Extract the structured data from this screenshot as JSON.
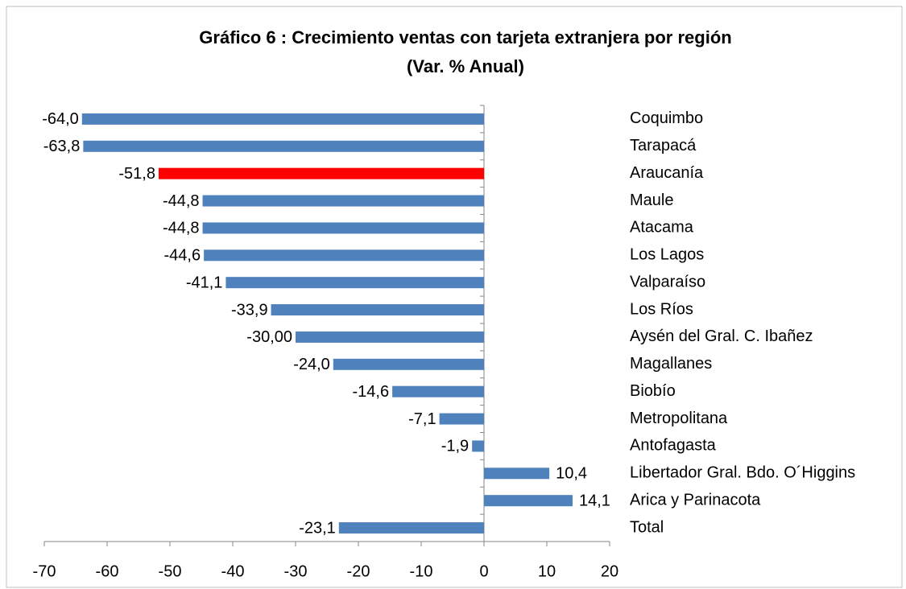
{
  "chart_data": {
    "type": "hbar",
    "title": "Gráfico 6 : Crecimiento ventas con tarjeta extranjera por región",
    "subtitle": "(Var. % Anual)",
    "categories": [
      "Coquimbo",
      "Tarapacá",
      "Araucanía",
      "Maule",
      "Atacama",
      "Los Lagos",
      "Valparaíso",
      "Los Ríos",
      "Aysén del Gral. C. Ibañez",
      "Magallanes",
      "Biobío",
      "Metropolitana",
      "Antofagasta",
      "Libertador Gral. Bdo. O´Higgins",
      "Arica y Parinacota",
      "Total"
    ],
    "values": [
      -64.0,
      -63.8,
      -51.8,
      -44.8,
      -44.8,
      -44.6,
      -41.1,
      -33.9,
      -30.0,
      -24.0,
      -14.6,
      -7.1,
      -1.9,
      10.4,
      14.1,
      -23.1
    ],
    "value_labels": [
      "-64,0",
      "-63,8",
      "-51,8",
      "-44,8",
      "-44,8",
      "-44,6",
      "-41,1",
      "-33,9",
      "-30,00",
      "-24,0",
      "-14,6",
      "-7,1",
      "-1,9",
      "10,4",
      "14,1",
      "-23,1"
    ],
    "colors": [
      "#4f81bd",
      "#4f81bd",
      "#ff0000",
      "#4f81bd",
      "#4f81bd",
      "#4f81bd",
      "#4f81bd",
      "#4f81bd",
      "#4f81bd",
      "#4f81bd",
      "#4f81bd",
      "#4f81bd",
      "#4f81bd",
      "#4f81bd",
      "#4f81bd",
      "#4f81bd"
    ],
    "xlim": [
      -70,
      20
    ],
    "xticks": [
      -70,
      -60,
      -50,
      -40,
      -30,
      -20,
      -10,
      0,
      10,
      20
    ]
  }
}
